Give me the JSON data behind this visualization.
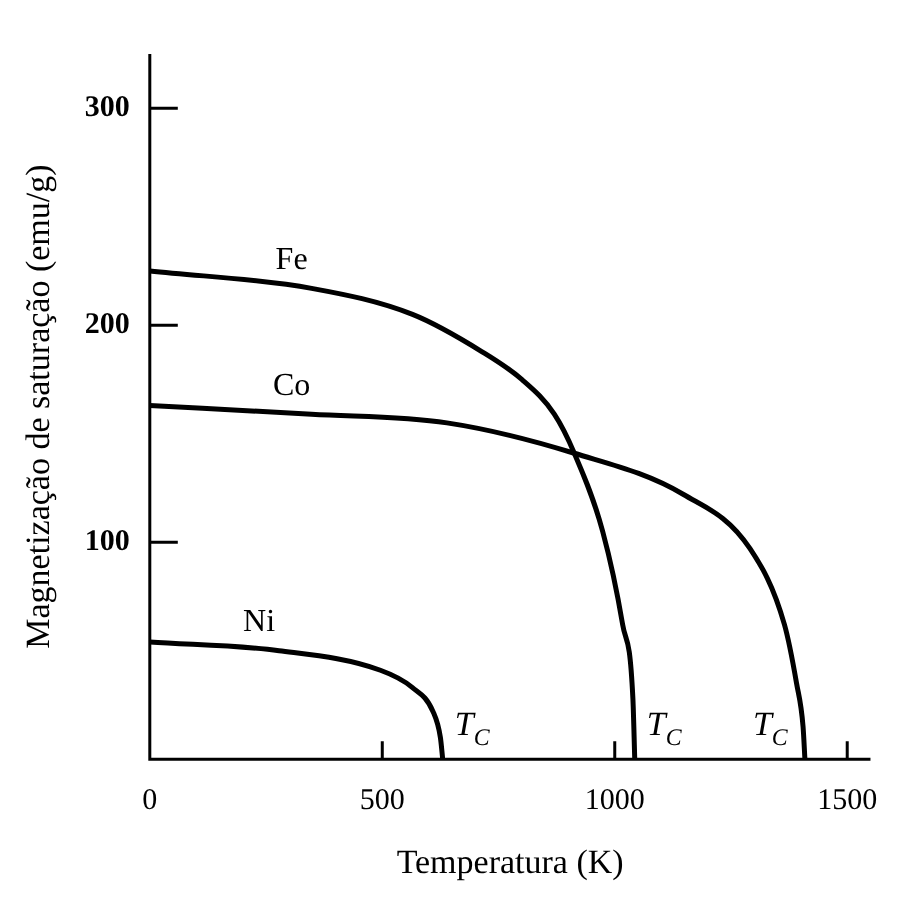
{
  "chart_data": {
    "type": "line",
    "xlabel": "Temperatura (K)",
    "ylabel": "Magnetização de saturação (emu/g)",
    "xlim": [
      0,
      1550
    ],
    "ylim": [
      0,
      325
    ],
    "xticks": [
      0,
      500,
      1000,
      1500
    ],
    "yticks": [
      100,
      200,
      300
    ],
    "grid": false,
    "legend": false,
    "marker": "none",
    "line_style": "solid",
    "series": [
      {
        "name": "Fe",
        "color": "#000000",
        "x": [
          0,
          348,
          565,
          713,
          800,
          870,
          913,
          974,
          1017,
          1039,
          1043
        ],
        "values": [
          225,
          217,
          205,
          188,
          175,
          159,
          141,
          105,
          62,
          28,
          0
        ]
      },
      {
        "name": "Co",
        "color": "#000000",
        "x": [
          0,
          348,
          639,
          913,
          1148,
          1291,
          1365,
          1391,
          1405,
          1409
        ],
        "values": [
          163,
          159,
          155,
          141,
          122,
          97,
          62,
          35,
          15,
          0
        ]
      },
      {
        "name": "Ni",
        "color": "#000000",
        "x": [
          0,
          278,
          496,
          565,
          609,
          625,
          630
        ],
        "values": [
          54,
          50,
          41,
          33,
          22,
          10,
          0
        ]
      }
    ],
    "annotations": [
      {
        "text": "T$_{C}$",
        "x": 630,
        "y": 0
      },
      {
        "text": "T$_{C}$",
        "x": 1043,
        "y": 0
      },
      {
        "text": "T$_{C}$",
        "x": 1409,
        "y": 0
      }
    ]
  }
}
